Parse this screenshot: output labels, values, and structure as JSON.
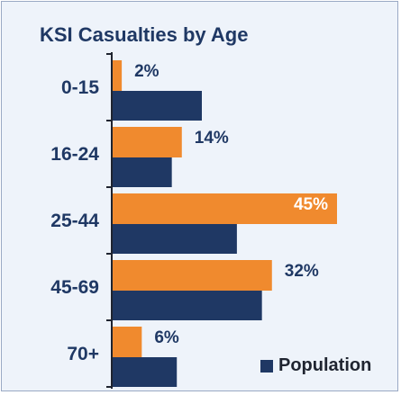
{
  "chart_data": {
    "type": "bar",
    "orientation": "horizontal",
    "title": "KSI Casualties by Age",
    "categories": [
      "0-15",
      "16-24",
      "25-44",
      "45-69",
      "70+"
    ],
    "series": [
      {
        "name": "",
        "values": [
          2,
          14,
          45,
          32,
          6
        ],
        "color": "#f08a2e",
        "show_labels": true
      },
      {
        "name": "Population",
        "values": [
          18,
          12,
          25,
          30,
          13
        ],
        "color": "#1f3864",
        "show_labels": false
      }
    ],
    "value_labels": [
      "2%",
      "14%",
      "45%",
      "32%",
      "6%"
    ],
    "label_colors": [
      "#1f3864",
      "#1f3864",
      "#ffffff",
      "#1f3864",
      "#1f3864"
    ],
    "xlim": [
      0,
      45
    ],
    "legend": {
      "label": "Population",
      "position": "bottom-right"
    },
    "grid": false
  }
}
